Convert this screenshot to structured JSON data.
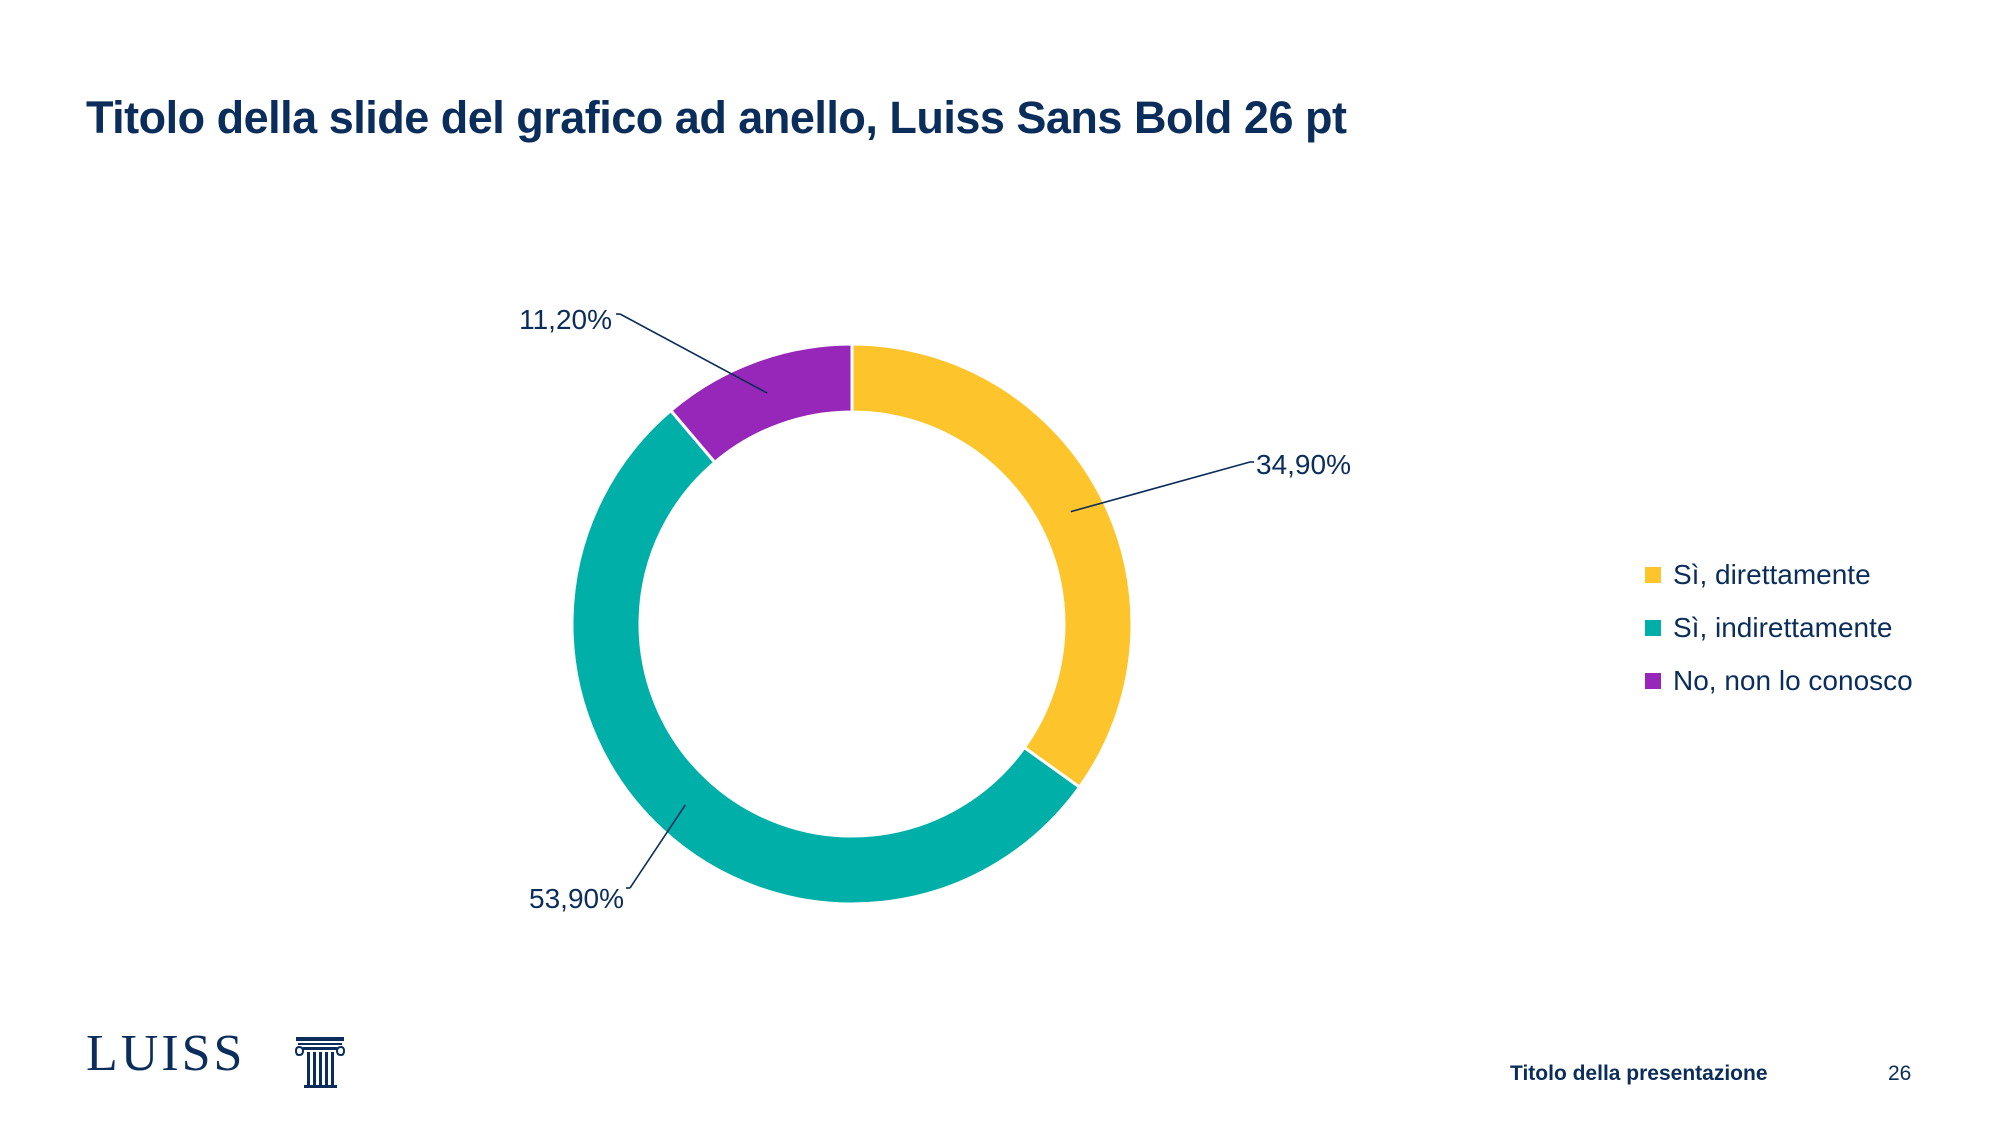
{
  "slide": {
    "title": "Titolo della slide del grafico ad anello, Luiss Sans Bold 26 pt"
  },
  "chart_data": {
    "type": "pie",
    "variant": "donut",
    "title": "",
    "categories": [
      "Sì, direttamente",
      "Sì, indirettamente",
      "No, non lo conosco"
    ],
    "values": [
      34.9,
      53.9,
      11.2
    ],
    "data_labels": [
      "34,90%",
      "53,90%",
      "11,20%"
    ],
    "colors": [
      "#fdc52b",
      "#00b0a8",
      "#9627b8"
    ],
    "legend_position": "right"
  },
  "legend": {
    "items": [
      {
        "label": "Sì, direttamente",
        "color": "#fdc52b"
      },
      {
        "label": "Sì, indirettamente",
        "color": "#00b0a8"
      },
      {
        "label": "No, non lo conosco",
        "color": "#9627b8"
      }
    ]
  },
  "footer": {
    "logo_text": "LUISS",
    "presentation_title": "Titolo della presentazione",
    "page_number": "26"
  },
  "colors": {
    "brand_navy": "#0b2d5b",
    "leader_line": "#0b2d5b"
  }
}
